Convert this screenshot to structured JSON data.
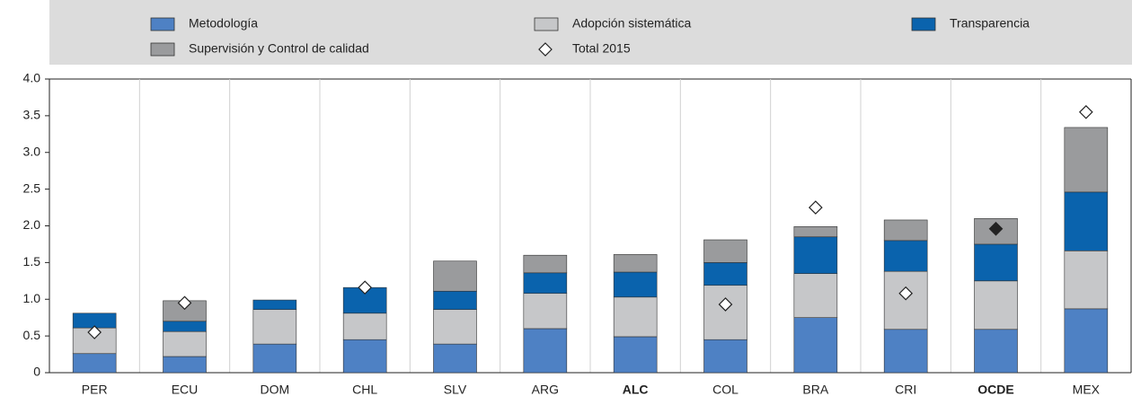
{
  "chart_data": {
    "type": "stacked_bar",
    "categories": [
      "PER",
      "ECU",
      "DOM",
      "CHL",
      "SLV",
      "ARG",
      "ALC",
      "COL",
      "BRA",
      "CRI",
      "OCDE",
      "MEX"
    ],
    "bold_categories": [
      6,
      10
    ],
    "series": [
      {
        "name": "Metodología",
        "color": "#4e81c4",
        "values": [
          0.26,
          0.22,
          0.39,
          0.45,
          0.39,
          0.6,
          0.49,
          0.45,
          0.75,
          0.59,
          0.59,
          0.87
        ]
      },
      {
        "name": "Adopción sistemática",
        "color": "#c6c7c9",
        "values": [
          0.35,
          0.34,
          0.47,
          0.36,
          0.47,
          0.48,
          0.54,
          0.74,
          0.6,
          0.79,
          0.66,
          0.79
        ]
      },
      {
        "name": "Transparencia",
        "color": "#0a63ad",
        "values": [
          0.2,
          0.14,
          0.13,
          0.35,
          0.25,
          0.28,
          0.34,
          0.31,
          0.5,
          0.42,
          0.5,
          0.8
        ]
      },
      {
        "name": "Supervisión y Control de calidad",
        "color": "#9a9b9d",
        "values": [
          0,
          0.28,
          0,
          0,
          0.41,
          0.24,
          0.24,
          0.31,
          0.14,
          0.28,
          0.35,
          0.88
        ]
      },
      {
        "name": "Total 2015",
        "type": "marker",
        "marker": "diamond",
        "color": "#ffffff",
        "point_colors": {
          "10": "#222222"
        },
        "values": [
          0.55,
          0.95,
          null,
          1.16,
          null,
          null,
          null,
          0.93,
          2.25,
          1.08,
          1.96,
          3.55
        ]
      }
    ],
    "ylim": [
      0,
      4.0
    ],
    "yticks": [
      0,
      0.5,
      {
        "value": 1.0,
        "label": "1.0"
      },
      1.5,
      {
        "value": 2.0,
        "label": "2.0"
      },
      2.5,
      {
        "value": 3.0,
        "label": "3.0"
      },
      3.5,
      {
        "value": 4.0,
        "label": "4.0"
      }
    ],
    "legend": "top"
  }
}
